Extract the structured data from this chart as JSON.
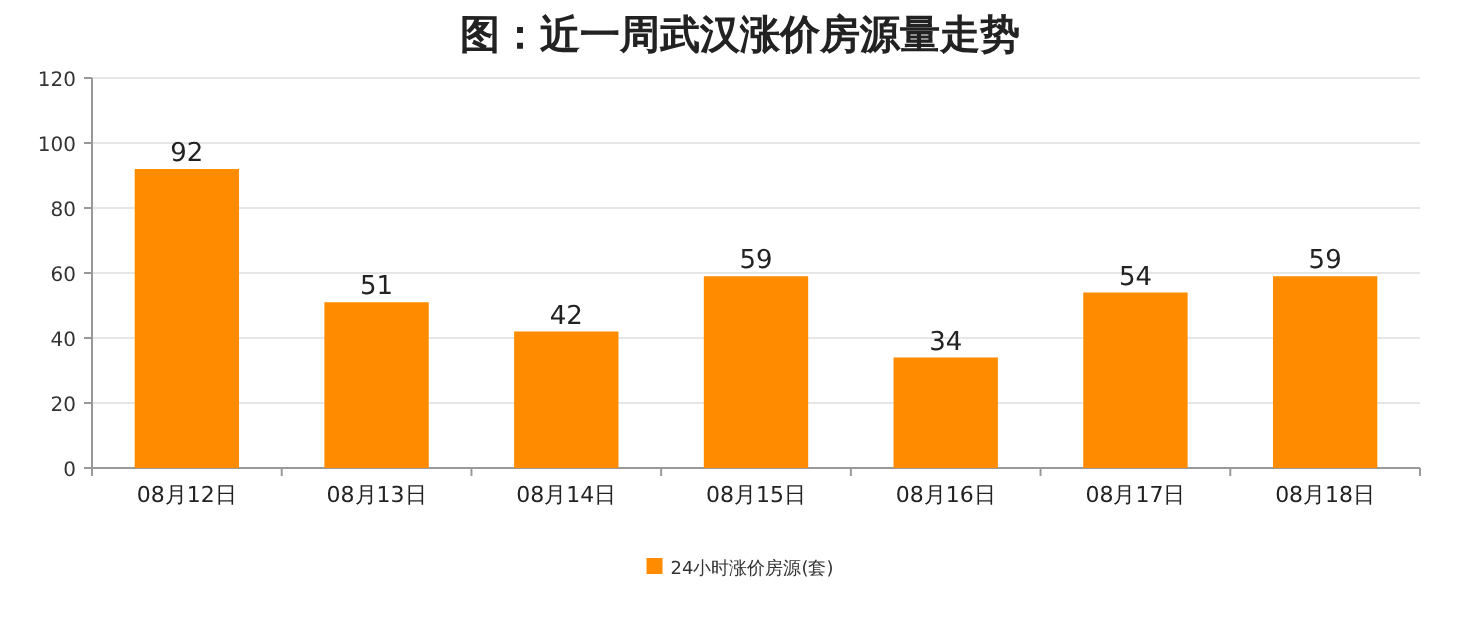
{
  "chart_data": {
    "type": "bar",
    "title": "图：近一周武汉涨价房源量走势",
    "categories": [
      "08月12日",
      "08月13日",
      "08月14日",
      "08月15日",
      "08月16日",
      "08月17日",
      "08月18日"
    ],
    "series": [
      {
        "name": "24小时涨价房源(套)",
        "color": "#ff8c00",
        "values": [
          92,
          51,
          42,
          59,
          34,
          54,
          59
        ]
      }
    ],
    "ylim": [
      0,
      120
    ],
    "yticks": [
      0,
      20,
      40,
      60,
      80,
      100,
      120
    ],
    "grid": "y",
    "legend": "bottom",
    "data_labels": true
  }
}
